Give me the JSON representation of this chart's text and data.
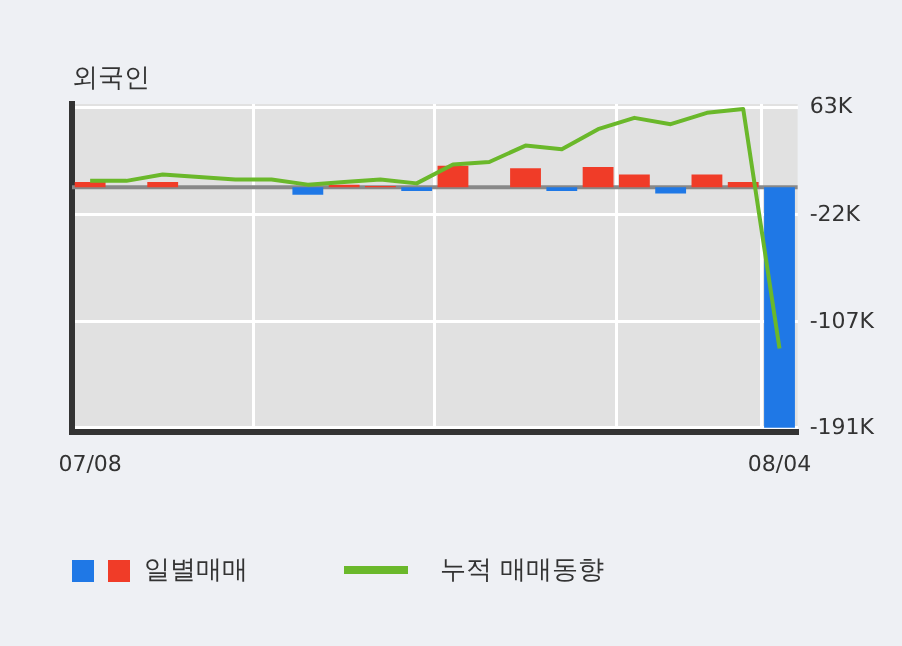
{
  "chart_data": {
    "type": "bar",
    "title": "외국인",
    "categories": [
      "07/08",
      null,
      null,
      null,
      null,
      null,
      null,
      null,
      null,
      null,
      null,
      null,
      null,
      null,
      null,
      null,
      null,
      null,
      null,
      "08/04"
    ],
    "series": [
      {
        "name": "일별매매",
        "colors": [
          "#f03c28",
          "#f03c28",
          "#f03c28",
          "#f03c28",
          "#f03c28",
          "#f03c28",
          "#1f78e6",
          "#f03c28",
          "#f03c28",
          "#1f78e6",
          "#f03c28",
          "#f03c28",
          "#f03c28",
          "#1f78e6",
          "#f03c28",
          "#f03c28",
          "#1f78e6",
          "#f03c28",
          "#f03c28",
          "#1f78e6"
        ],
        "values": [
          4,
          0,
          4,
          0,
          0,
          0,
          -6,
          2,
          1,
          -3,
          17,
          0,
          15,
          -3,
          16,
          10,
          -5,
          10,
          4,
          -191
        ]
      },
      {
        "name": "누적 매매동향",
        "type": "line",
        "color": "#6ab82a",
        "values": [
          5,
          5,
          10,
          8,
          6,
          6,
          2,
          4,
          6,
          3,
          18,
          20,
          33,
          30,
          46,
          55,
          50,
          59,
          62,
          -128
        ]
      }
    ],
    "ylim": [
      -194,
      66
    ],
    "yticks": [
      {
        "value": 63,
        "label": "63K"
      },
      {
        "value": -22,
        "label": "-22K"
      },
      {
        "value": -107,
        "label": "-107K"
      },
      {
        "value": -191,
        "label": "-191K"
      }
    ],
    "ref_lines": [
      {
        "axis": "y",
        "value": 0,
        "color": "#888888"
      }
    ],
    "grid": true,
    "legend": "bottom",
    "marker": "none"
  }
}
